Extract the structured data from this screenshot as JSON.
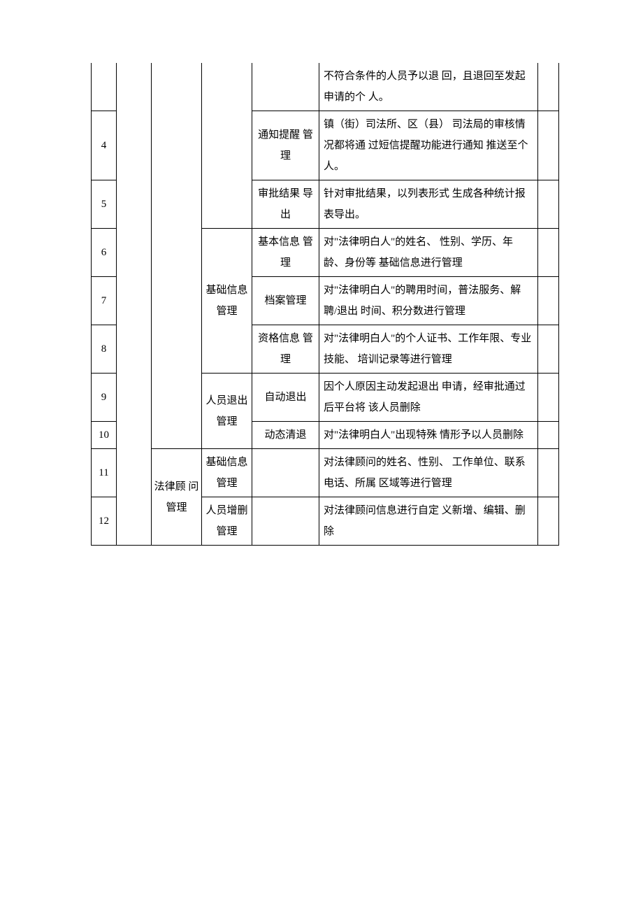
{
  "rows": {
    "r0": {
      "desc": "不符合条件的人员予以退 回，且退回至发起申请的个 人。"
    },
    "r4": {
      "idx": "4",
      "d": "通知提醒 管理",
      "desc": "镇（街）司法所、区（县） 司法局的审核情况都将通 过短信提醒功能进行通知 推送至个人。"
    },
    "r5": {
      "idx": "5",
      "d": "审批结果 导出",
      "desc": "针对审批结果，以列表形式 生成各种统计报表导出。"
    },
    "r6": {
      "idx": "6",
      "d": "基本信息 管理",
      "desc": "对\"法律明白人\"的姓名、 性别、学历、年龄、身份等 基础信息进行管理"
    },
    "r7": {
      "idx": "7",
      "c": "基础信息 管理",
      "d": "档案管理",
      "desc": "对\"法律明白人\"的聘用时间，普法服务、解聘/退出 时间、积分数进行管理"
    },
    "r8": {
      "idx": "8",
      "d": "资格信息 管理",
      "desc": "对\"法律明白人\"的个人证书、工作年限、专业技能、 培训记录等进行管理"
    },
    "r9": {
      "idx": "9",
      "c": "人员退出 管理",
      "d": "自动退出",
      "desc": "因个人原因主动发起退出 申请，经审批通过后平台将 该人员删除"
    },
    "r10": {
      "idx": "10",
      "d": "动态清退",
      "desc": "对\"法律明白人\"出现特殊 情形予以人员删除"
    },
    "r11": {
      "idx": "11",
      "b": "法律顾 问管理",
      "c": "基础信息管理",
      "desc": "对法律顾问的姓名、性别、 工作单位、联系电话、所属 区域等进行管理"
    },
    "r12": {
      "idx": "12",
      "c": "人员增删 管理",
      "desc": "对法律顾问信息进行自定 义新增、编辑、删除"
    }
  }
}
